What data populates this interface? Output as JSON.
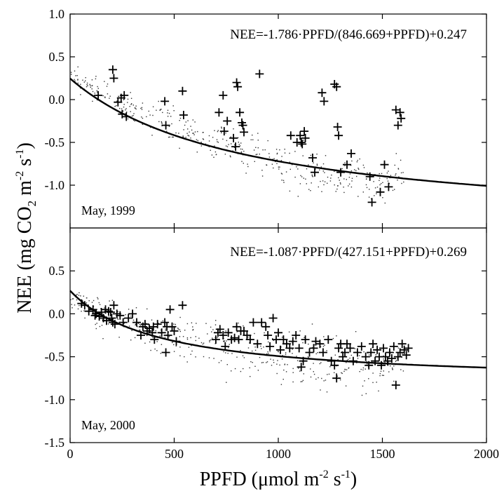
{
  "figure": {
    "ylabel_parts": [
      "NEE (mg CO",
      "2",
      " m",
      "-2",
      " s",
      "-1",
      ")"
    ],
    "xlabel_parts": [
      "PPFD (",
      "μ",
      "mol m",
      "-2",
      " s",
      "-1",
      ")"
    ]
  },
  "chart_data": [
    {
      "type": "scatter",
      "panel_label": "May, 1999",
      "equation": "NEE=-1.786·PPFD/(846.669+PPFD)+0.247",
      "xlim": [
        0,
        2000
      ],
      "ylim": [
        -1.5,
        1.0
      ],
      "xticks": [
        0,
        500,
        1000,
        1500,
        2000
      ],
      "yticks": [
        1.0,
        0.5,
        0.0,
        -0.5,
        -1.0
      ],
      "ytick_labels": [
        "1.0",
        "0.5",
        "0.0",
        "-0.5",
        "-1.0"
      ],
      "fit": {
        "a": -1.786,
        "k": 846.669,
        "c": 0.247
      },
      "dot_cloud": [
        [
          0,
          0.3,
          0.08
        ],
        [
          100,
          0.15,
          0.1
        ],
        [
          200,
          0.05,
          0.12
        ],
        [
          300,
          -0.12,
          0.12
        ],
        [
          400,
          -0.2,
          0.14
        ],
        [
          500,
          -0.3,
          0.15
        ],
        [
          600,
          -0.4,
          0.15
        ],
        [
          700,
          -0.47,
          0.17
        ],
        [
          800,
          -0.55,
          0.18
        ],
        [
          900,
          -0.65,
          0.18
        ],
        [
          1000,
          -0.72,
          0.2
        ],
        [
          1100,
          -0.78,
          0.2
        ],
        [
          1200,
          -0.85,
          0.2
        ],
        [
          1300,
          -0.9,
          0.2
        ],
        [
          1400,
          -0.95,
          0.2
        ],
        [
          1500,
          -0.98,
          0.2
        ],
        [
          1600,
          -0.9,
          0.2
        ]
      ],
      "plus_points": [
        [
          135,
          0.05
        ],
        [
          205,
          0.35
        ],
        [
          210,
          0.25
        ],
        [
          230,
          -0.03
        ],
        [
          245,
          0.02
        ],
        [
          250,
          -0.17
        ],
        [
          260,
          0.05
        ],
        [
          270,
          -0.2
        ],
        [
          455,
          -0.02
        ],
        [
          460,
          -0.3
        ],
        [
          540,
          0.1
        ],
        [
          545,
          -0.18
        ],
        [
          715,
          -0.15
        ],
        [
          735,
          0.05
        ],
        [
          740,
          -0.37
        ],
        [
          755,
          -0.25
        ],
        [
          785,
          -0.45
        ],
        [
          795,
          -0.55
        ],
        [
          800,
          0.2
        ],
        [
          805,
          0.15
        ],
        [
          815,
          -0.15
        ],
        [
          825,
          -0.27
        ],
        [
          830,
          -0.3
        ],
        [
          835,
          -0.38
        ],
        [
          910,
          0.3
        ],
        [
          1060,
          -0.42
        ],
        [
          1090,
          -0.5
        ],
        [
          1105,
          -0.42
        ],
        [
          1110,
          -0.5
        ],
        [
          1115,
          -0.52
        ],
        [
          1125,
          -0.37
        ],
        [
          1130,
          -0.45
        ],
        [
          1165,
          -0.68
        ],
        [
          1175,
          -0.85
        ],
        [
          1210,
          0.08
        ],
        [
          1220,
          -0.02
        ],
        [
          1270,
          0.18
        ],
        [
          1280,
          0.15
        ],
        [
          1285,
          -0.32
        ],
        [
          1290,
          -0.42
        ],
        [
          1300,
          -0.85
        ],
        [
          1330,
          -0.76
        ],
        [
          1350,
          -0.63
        ],
        [
          1440,
          -0.9
        ],
        [
          1450,
          -1.2
        ],
        [
          1490,
          -1.08
        ],
        [
          1510,
          -0.76
        ],
        [
          1530,
          -1.02
        ],
        [
          1565,
          -0.12
        ],
        [
          1575,
          -0.3
        ],
        [
          1585,
          -0.15
        ],
        [
          1590,
          -0.22
        ]
      ]
    },
    {
      "type": "scatter",
      "panel_label": "May, 2000",
      "equation": "NEE=-1.087·PPFD/(427.151+PPFD)+0.269",
      "xlim": [
        0,
        2000
      ],
      "ylim": [
        -1.5,
        1.0
      ],
      "xticks": [
        0,
        500,
        1000,
        1500,
        2000
      ],
      "xtick_labels": [
        "0",
        "500",
        "1000",
        "1500",
        "2000"
      ],
      "yticks": [
        0.5,
        0.0,
        -0.5,
        -1.0,
        -1.5
      ],
      "ytick_labels": [
        "0.5",
        "0.0",
        "-0.5",
        "-1.0",
        "-1.5"
      ],
      "fit": {
        "a": -1.087,
        "k": 427.151,
        "c": 0.269
      },
      "dot_cloud": [
        [
          0,
          0.2,
          0.1
        ],
        [
          100,
          0.05,
          0.12
        ],
        [
          200,
          -0.05,
          0.15
        ],
        [
          300,
          -0.12,
          0.15
        ],
        [
          400,
          -0.2,
          0.17
        ],
        [
          500,
          -0.25,
          0.2
        ],
        [
          600,
          -0.3,
          0.2
        ],
        [
          700,
          -0.35,
          0.2
        ],
        [
          800,
          -0.4,
          0.2
        ],
        [
          900,
          -0.45,
          0.22
        ],
        [
          1000,
          -0.5,
          0.22
        ],
        [
          1100,
          -0.52,
          0.22
        ],
        [
          1200,
          -0.55,
          0.2
        ],
        [
          1300,
          -0.57,
          0.2
        ],
        [
          1400,
          -0.6,
          0.2
        ],
        [
          1500,
          -0.6,
          0.2
        ],
        [
          1600,
          -0.55,
          0.15
        ]
      ],
      "plus_points": [
        [
          55,
          0.12
        ],
        [
          70,
          0.1
        ],
        [
          90,
          0.03
        ],
        [
          110,
          0.05
        ],
        [
          120,
          -0.02
        ],
        [
          125,
          0.0
        ],
        [
          140,
          -0.03
        ],
        [
          150,
          0.02
        ],
        [
          160,
          -0.05
        ],
        [
          170,
          0.05
        ],
        [
          175,
          -0.08
        ],
        [
          185,
          0.03
        ],
        [
          195,
          0.02
        ],
        [
          200,
          -0.05
        ],
        [
          205,
          -0.1
        ],
        [
          210,
          0.1
        ],
        [
          215,
          -0.12
        ],
        [
          225,
          0.0
        ],
        [
          240,
          -0.02
        ],
        [
          255,
          -0.1
        ],
        [
          280,
          -0.05
        ],
        [
          300,
          0.0
        ],
        [
          320,
          -0.1
        ],
        [
          340,
          -0.25
        ],
        [
          350,
          -0.15
        ],
        [
          360,
          -0.12
        ],
        [
          370,
          -0.2
        ],
        [
          380,
          -0.17
        ],
        [
          395,
          -0.22
        ],
        [
          400,
          -0.15
        ],
        [
          405,
          -0.3
        ],
        [
          420,
          -0.12
        ],
        [
          440,
          -0.22
        ],
        [
          455,
          -0.1
        ],
        [
          460,
          -0.45
        ],
        [
          465,
          -0.15
        ],
        [
          470,
          -0.25
        ],
        [
          480,
          0.05
        ],
        [
          490,
          -0.15
        ],
        [
          500,
          -0.2
        ],
        [
          510,
          -0.32
        ],
        [
          540,
          0.1
        ],
        [
          700,
          -0.3
        ],
        [
          710,
          -0.22
        ],
        [
          720,
          -0.18
        ],
        [
          735,
          -0.25
        ],
        [
          745,
          -0.38
        ],
        [
          760,
          -0.22
        ],
        [
          775,
          -0.3
        ],
        [
          790,
          -0.28
        ],
        [
          800,
          -0.15
        ],
        [
          810,
          -0.3
        ],
        [
          820,
          -0.2
        ],
        [
          835,
          -0.2
        ],
        [
          850,
          -0.25
        ],
        [
          865,
          -0.3
        ],
        [
          880,
          -0.1
        ],
        [
          900,
          -0.35
        ],
        [
          920,
          -0.1
        ],
        [
          940,
          -0.15
        ],
        [
          950,
          -0.25
        ],
        [
          960,
          -0.38
        ],
        [
          975,
          -0.05
        ],
        [
          990,
          -0.3
        ],
        [
          1000,
          -0.22
        ],
        [
          1010,
          -0.42
        ],
        [
          1025,
          -0.3
        ],
        [
          1040,
          -0.35
        ],
        [
          1055,
          -0.4
        ],
        [
          1070,
          -0.32
        ],
        [
          1085,
          -0.25
        ],
        [
          1100,
          -0.4
        ],
        [
          1110,
          -0.62
        ],
        [
          1120,
          -0.55
        ],
        [
          1130,
          -0.3
        ],
        [
          1150,
          -0.45
        ],
        [
          1170,
          -0.4
        ],
        [
          1180,
          -0.32
        ],
        [
          1200,
          -0.35
        ],
        [
          1215,
          -0.45
        ],
        [
          1240,
          -0.3
        ],
        [
          1255,
          -0.55
        ],
        [
          1270,
          -0.6
        ],
        [
          1280,
          -0.75
        ],
        [
          1290,
          -0.4
        ],
        [
          1300,
          -0.35
        ],
        [
          1310,
          -0.5
        ],
        [
          1320,
          -0.45
        ],
        [
          1330,
          -0.35
        ],
        [
          1345,
          -0.4
        ],
        [
          1360,
          -0.55
        ],
        [
          1380,
          -0.45
        ],
        [
          1400,
          -0.38
        ],
        [
          1420,
          -0.5
        ],
        [
          1435,
          -0.6
        ],
        [
          1445,
          -0.45
        ],
        [
          1455,
          -0.35
        ],
        [
          1465,
          -0.55
        ],
        [
          1475,
          -0.42
        ],
        [
          1485,
          -0.5
        ],
        [
          1495,
          -0.6
        ],
        [
          1505,
          -0.4
        ],
        [
          1515,
          -0.5
        ],
        [
          1525,
          -0.55
        ],
        [
          1535,
          -0.45
        ],
        [
          1545,
          -0.52
        ],
        [
          1555,
          -0.38
        ],
        [
          1565,
          -0.83
        ],
        [
          1575,
          -0.5
        ],
        [
          1585,
          -0.45
        ],
        [
          1595,
          -0.35
        ],
        [
          1605,
          -0.42
        ],
        [
          1615,
          -0.48
        ],
        [
          1625,
          -0.4
        ]
      ]
    }
  ]
}
